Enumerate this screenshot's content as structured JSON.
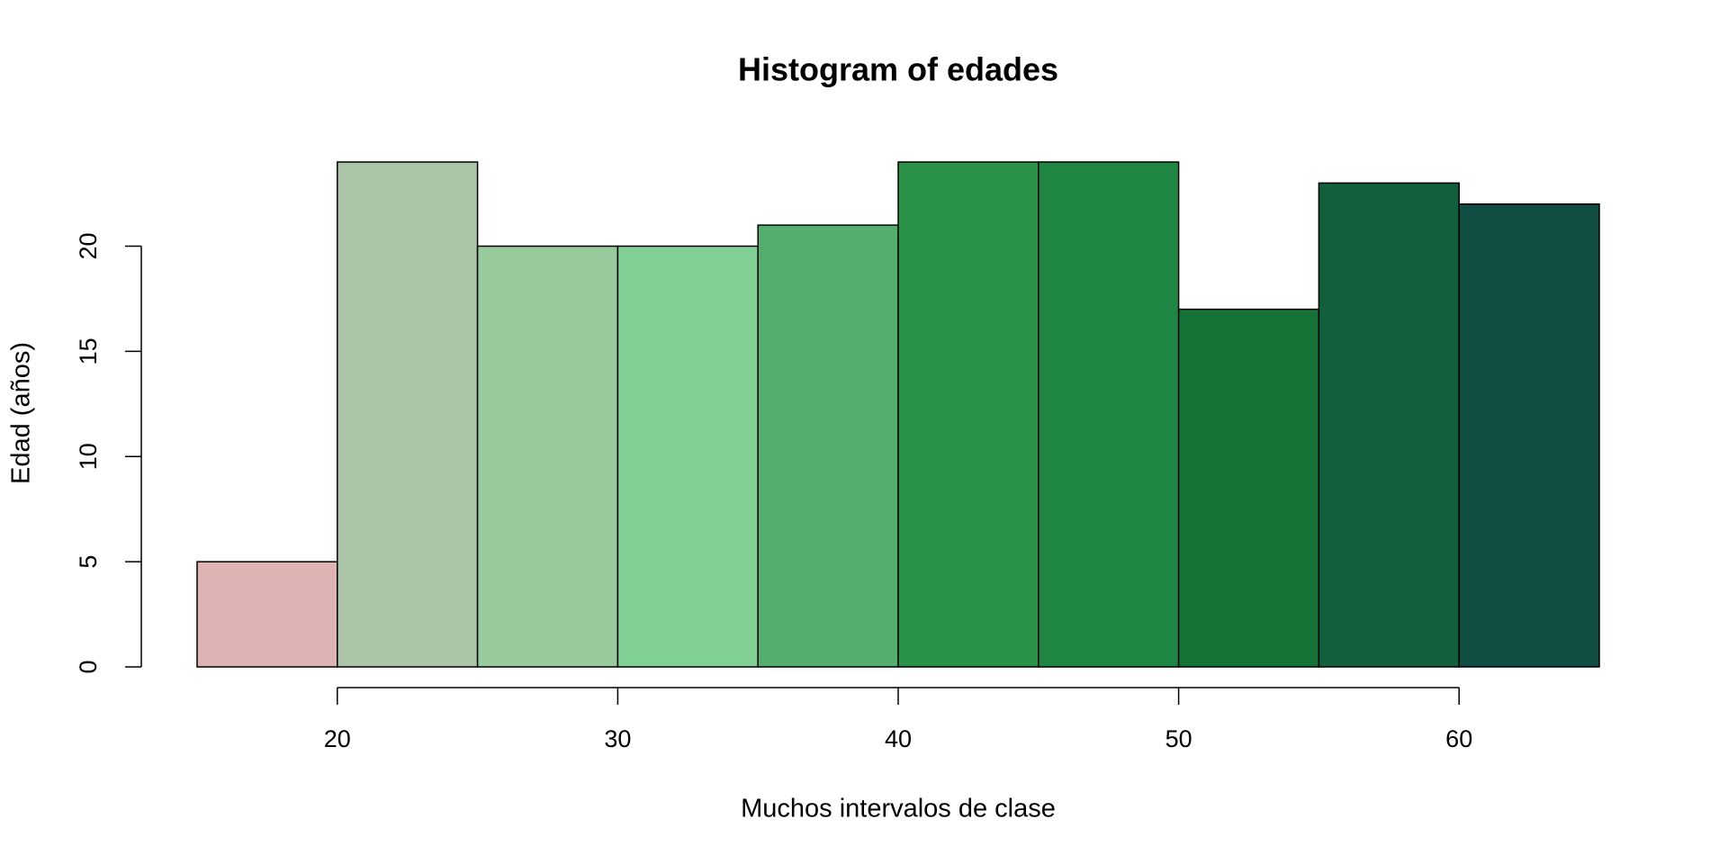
{
  "chart_data": {
    "type": "histogram",
    "title": "Histogram of edades",
    "xlabel": "Muchos intervalos de clase",
    "ylabel": "Edad (años)",
    "bins": [
      15,
      20,
      25,
      30,
      35,
      40,
      45,
      50,
      55,
      60,
      65
    ],
    "values": [
      5,
      24,
      20,
      20,
      21,
      24,
      24,
      17,
      23,
      22
    ],
    "colors": [
      "#DDB4B3",
      "#ABC4A7",
      "#97CA9C",
      "#80CF95",
      "#54AF6E",
      "#2B9249",
      "#208643",
      "#157338",
      "#125F3D",
      "#124D44"
    ],
    "xlim": [
      15,
      65
    ],
    "xticks": [
      20,
      30,
      40,
      50,
      60
    ],
    "ylim": [
      0,
      24
    ],
    "yticks": [
      0,
      5,
      10,
      15,
      20
    ]
  }
}
